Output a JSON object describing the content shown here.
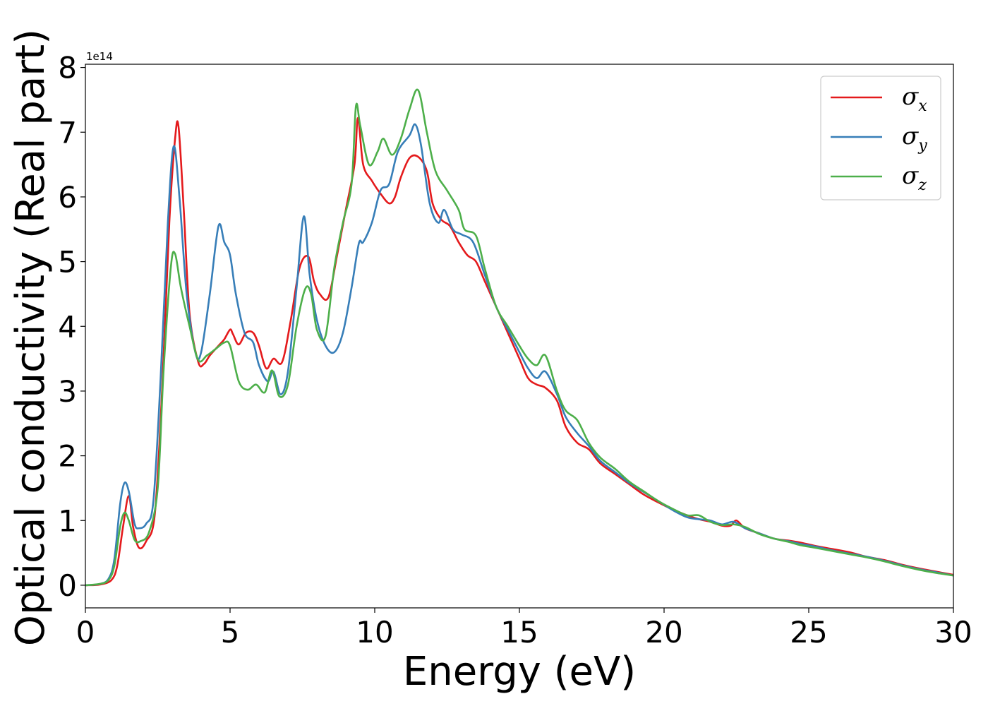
{
  "chart_data": {
    "type": "line",
    "xlabel": "Energy (eV)",
    "ylabel": "Optical conductivity (Real part)",
    "y_offset_label": "1e14",
    "xlim": [
      0,
      30
    ],
    "ylim": [
      -0.35,
      8.05
    ],
    "x_ticks": [
      0,
      5,
      10,
      15,
      20,
      25,
      30
    ],
    "x_tick_labels": [
      "0",
      "5",
      "10",
      "15",
      "20",
      "25",
      "30"
    ],
    "y_ticks": [
      0,
      1,
      2,
      3,
      4,
      5,
      6,
      7,
      8
    ],
    "y_tick_labels": [
      "0",
      "1",
      "2",
      "3",
      "4",
      "5",
      "6",
      "7",
      "8"
    ],
    "grid": false,
    "legend": {
      "position": "top-right",
      "entries": [
        {
          "symbol": "σ",
          "sub": "x",
          "color": "#e41a1c"
        },
        {
          "symbol": "σ",
          "sub": "y",
          "color": "#377eb8"
        },
        {
          "symbol": "σ",
          "sub": "z",
          "color": "#4daf4a"
        }
      ]
    },
    "series": [
      {
        "key": "sigma_x",
        "color": "#e41a1c",
        "points": [
          [
            0,
            0
          ],
          [
            0.5,
            0.01
          ],
          [
            0.9,
            0.08
          ],
          [
            1.1,
            0.3
          ],
          [
            1.3,
            0.9
          ],
          [
            1.5,
            1.38
          ],
          [
            1.65,
            0.9
          ],
          [
            1.85,
            0.58
          ],
          [
            2.1,
            0.68
          ],
          [
            2.4,
            1.1
          ],
          [
            2.65,
            3.0
          ],
          [
            2.9,
            5.6
          ],
          [
            3.1,
            6.9
          ],
          [
            3.22,
            7.08
          ],
          [
            3.4,
            5.8
          ],
          [
            3.6,
            4.2
          ],
          [
            3.9,
            3.45
          ],
          [
            4.1,
            3.42
          ],
          [
            4.3,
            3.55
          ],
          [
            4.6,
            3.7
          ],
          [
            4.8,
            3.8
          ],
          [
            5.0,
            3.95
          ],
          [
            5.1,
            3.88
          ],
          [
            5.3,
            3.72
          ],
          [
            5.55,
            3.9
          ],
          [
            5.8,
            3.9
          ],
          [
            6.0,
            3.7
          ],
          [
            6.25,
            3.35
          ],
          [
            6.5,
            3.5
          ],
          [
            6.8,
            3.45
          ],
          [
            7.1,
            4.1
          ],
          [
            7.4,
            4.9
          ],
          [
            7.7,
            5.08
          ],
          [
            7.9,
            4.7
          ],
          [
            8.1,
            4.5
          ],
          [
            8.4,
            4.45
          ],
          [
            8.7,
            5.1
          ],
          [
            9.0,
            5.8
          ],
          [
            9.3,
            6.5
          ],
          [
            9.42,
            7.22
          ],
          [
            9.6,
            6.5
          ],
          [
            9.9,
            6.25
          ],
          [
            10.2,
            6.05
          ],
          [
            10.5,
            5.9
          ],
          [
            10.7,
            6.0
          ],
          [
            10.9,
            6.3
          ],
          [
            11.2,
            6.6
          ],
          [
            11.5,
            6.62
          ],
          [
            11.8,
            6.4
          ],
          [
            12.0,
            5.9
          ],
          [
            12.3,
            5.65
          ],
          [
            12.6,
            5.55
          ],
          [
            12.9,
            5.3
          ],
          [
            13.2,
            5.1
          ],
          [
            13.5,
            5.0
          ],
          [
            13.8,
            4.7
          ],
          [
            14.2,
            4.3
          ],
          [
            14.6,
            3.9
          ],
          [
            15.0,
            3.5
          ],
          [
            15.3,
            3.2
          ],
          [
            15.6,
            3.1
          ],
          [
            15.9,
            3.05
          ],
          [
            16.3,
            2.85
          ],
          [
            16.6,
            2.45
          ],
          [
            17.0,
            2.2
          ],
          [
            17.4,
            2.1
          ],
          [
            17.8,
            1.88
          ],
          [
            18.3,
            1.72
          ],
          [
            18.8,
            1.56
          ],
          [
            19.3,
            1.4
          ],
          [
            19.8,
            1.28
          ],
          [
            20.3,
            1.17
          ],
          [
            20.8,
            1.08
          ],
          [
            21.2,
            1.02
          ],
          [
            21.6,
            0.98
          ],
          [
            22.0,
            0.92
          ],
          [
            22.3,
            0.92
          ],
          [
            22.5,
            1.0
          ],
          [
            22.8,
            0.88
          ],
          [
            23.3,
            0.8
          ],
          [
            23.8,
            0.72
          ],
          [
            24.3,
            0.69
          ],
          [
            24.7,
            0.66
          ],
          [
            25.2,
            0.61
          ],
          [
            25.8,
            0.56
          ],
          [
            26.4,
            0.51
          ],
          [
            27.0,
            0.44
          ],
          [
            27.6,
            0.39
          ],
          [
            28.2,
            0.32
          ],
          [
            28.8,
            0.26
          ],
          [
            29.4,
            0.21
          ],
          [
            30.0,
            0.16
          ]
        ]
      },
      {
        "key": "sigma_y",
        "color": "#377eb8",
        "points": [
          [
            0,
            0
          ],
          [
            0.5,
            0.02
          ],
          [
            0.8,
            0.1
          ],
          [
            1.0,
            0.4
          ],
          [
            1.2,
            1.25
          ],
          [
            1.35,
            1.58
          ],
          [
            1.5,
            1.45
          ],
          [
            1.7,
            0.95
          ],
          [
            1.85,
            0.88
          ],
          [
            2.1,
            0.95
          ],
          [
            2.35,
            1.3
          ],
          [
            2.6,
            3.2
          ],
          [
            2.85,
            5.6
          ],
          [
            3.05,
            6.78
          ],
          [
            3.25,
            6.0
          ],
          [
            3.5,
            4.5
          ],
          [
            3.8,
            3.6
          ],
          [
            4.0,
            3.6
          ],
          [
            4.3,
            4.5
          ],
          [
            4.6,
            5.55
          ],
          [
            4.8,
            5.3
          ],
          [
            5.0,
            5.1
          ],
          [
            5.2,
            4.5
          ],
          [
            5.5,
            3.9
          ],
          [
            5.8,
            3.75
          ],
          [
            6.0,
            3.4
          ],
          [
            6.3,
            3.15
          ],
          [
            6.5,
            3.3
          ],
          [
            6.75,
            2.95
          ],
          [
            7.0,
            3.3
          ],
          [
            7.3,
            4.6
          ],
          [
            7.55,
            5.7
          ],
          [
            7.75,
            4.8
          ],
          [
            8.0,
            4.1
          ],
          [
            8.3,
            3.7
          ],
          [
            8.6,
            3.6
          ],
          [
            8.9,
            3.9
          ],
          [
            9.2,
            4.6
          ],
          [
            9.45,
            5.28
          ],
          [
            9.6,
            5.3
          ],
          [
            9.9,
            5.6
          ],
          [
            10.2,
            6.1
          ],
          [
            10.5,
            6.2
          ],
          [
            10.8,
            6.7
          ],
          [
            11.2,
            6.95
          ],
          [
            11.4,
            7.12
          ],
          [
            11.6,
            6.8
          ],
          [
            11.9,
            5.9
          ],
          [
            12.2,
            5.6
          ],
          [
            12.4,
            5.8
          ],
          [
            12.7,
            5.5
          ],
          [
            13.0,
            5.42
          ],
          [
            13.4,
            5.3
          ],
          [
            13.8,
            4.8
          ],
          [
            14.2,
            4.3
          ],
          [
            14.6,
            3.95
          ],
          [
            15.0,
            3.6
          ],
          [
            15.3,
            3.35
          ],
          [
            15.6,
            3.2
          ],
          [
            15.9,
            3.3
          ],
          [
            16.3,
            2.95
          ],
          [
            16.6,
            2.6
          ],
          [
            17.0,
            2.35
          ],
          [
            17.4,
            2.15
          ],
          [
            17.8,
            1.92
          ],
          [
            18.3,
            1.75
          ],
          [
            18.8,
            1.58
          ],
          [
            19.3,
            1.44
          ],
          [
            19.8,
            1.3
          ],
          [
            20.3,
            1.16
          ],
          [
            20.8,
            1.05
          ],
          [
            21.2,
            1.02
          ],
          [
            21.6,
            1.0
          ],
          [
            22.0,
            0.94
          ],
          [
            22.4,
            0.98
          ],
          [
            22.8,
            0.88
          ],
          [
            23.3,
            0.8
          ],
          [
            23.8,
            0.72
          ],
          [
            24.3,
            0.68
          ],
          [
            24.7,
            0.64
          ],
          [
            25.2,
            0.6
          ],
          [
            25.8,
            0.54
          ],
          [
            26.4,
            0.49
          ],
          [
            27.0,
            0.44
          ],
          [
            27.6,
            0.38
          ],
          [
            28.2,
            0.31
          ],
          [
            28.8,
            0.25
          ],
          [
            29.4,
            0.2
          ],
          [
            30.0,
            0.15
          ]
        ]
      },
      {
        "key": "sigma_z",
        "color": "#4daf4a",
        "points": [
          [
            0,
            0
          ],
          [
            0.5,
            0.02
          ],
          [
            0.8,
            0.08
          ],
          [
            1.0,
            0.3
          ],
          [
            1.2,
            0.9
          ],
          [
            1.35,
            1.12
          ],
          [
            1.5,
            1.0
          ],
          [
            1.7,
            0.7
          ],
          [
            1.9,
            0.68
          ],
          [
            2.2,
            0.82
          ],
          [
            2.5,
            1.5
          ],
          [
            2.7,
            3.3
          ],
          [
            2.95,
            4.9
          ],
          [
            3.1,
            5.12
          ],
          [
            3.3,
            4.6
          ],
          [
            3.6,
            4.0
          ],
          [
            3.9,
            3.48
          ],
          [
            4.2,
            3.55
          ],
          [
            4.5,
            3.65
          ],
          [
            4.8,
            3.75
          ],
          [
            5.0,
            3.7
          ],
          [
            5.3,
            3.15
          ],
          [
            5.6,
            3.02
          ],
          [
            5.9,
            3.1
          ],
          [
            6.2,
            2.98
          ],
          [
            6.45,
            3.32
          ],
          [
            6.7,
            2.92
          ],
          [
            7.0,
            3.1
          ],
          [
            7.3,
            4.0
          ],
          [
            7.6,
            4.58
          ],
          [
            7.8,
            4.5
          ],
          [
            8.0,
            3.95
          ],
          [
            8.3,
            3.85
          ],
          [
            8.6,
            4.9
          ],
          [
            8.9,
            5.6
          ],
          [
            9.2,
            6.2
          ],
          [
            9.35,
            7.4
          ],
          [
            9.5,
            7.1
          ],
          [
            9.8,
            6.5
          ],
          [
            10.1,
            6.7
          ],
          [
            10.3,
            6.9
          ],
          [
            10.6,
            6.65
          ],
          [
            10.9,
            6.9
          ],
          [
            11.2,
            7.35
          ],
          [
            11.5,
            7.65
          ],
          [
            11.8,
            7.0
          ],
          [
            12.1,
            6.4
          ],
          [
            12.5,
            6.1
          ],
          [
            12.9,
            5.8
          ],
          [
            13.1,
            5.5
          ],
          [
            13.5,
            5.4
          ],
          [
            13.8,
            4.9
          ],
          [
            14.2,
            4.3
          ],
          [
            14.6,
            4.0
          ],
          [
            15.0,
            3.7
          ],
          [
            15.3,
            3.5
          ],
          [
            15.6,
            3.4
          ],
          [
            15.9,
            3.55
          ],
          [
            16.3,
            3.0
          ],
          [
            16.6,
            2.7
          ],
          [
            17.0,
            2.55
          ],
          [
            17.4,
            2.2
          ],
          [
            17.8,
            1.97
          ],
          [
            18.3,
            1.8
          ],
          [
            18.8,
            1.6
          ],
          [
            19.3,
            1.45
          ],
          [
            19.8,
            1.3
          ],
          [
            20.3,
            1.18
          ],
          [
            20.8,
            1.08
          ],
          [
            21.2,
            1.08
          ],
          [
            21.6,
            0.98
          ],
          [
            22.0,
            0.93
          ],
          [
            22.4,
            0.94
          ],
          [
            22.8,
            0.9
          ],
          [
            23.3,
            0.79
          ],
          [
            23.8,
            0.72
          ],
          [
            24.3,
            0.67
          ],
          [
            24.7,
            0.62
          ],
          [
            25.2,
            0.58
          ],
          [
            25.8,
            0.53
          ],
          [
            26.4,
            0.48
          ],
          [
            27.0,
            0.43
          ],
          [
            27.6,
            0.37
          ],
          [
            28.2,
            0.3
          ],
          [
            28.8,
            0.24
          ],
          [
            29.4,
            0.19
          ],
          [
            30.0,
            0.15
          ]
        ]
      }
    ]
  }
}
